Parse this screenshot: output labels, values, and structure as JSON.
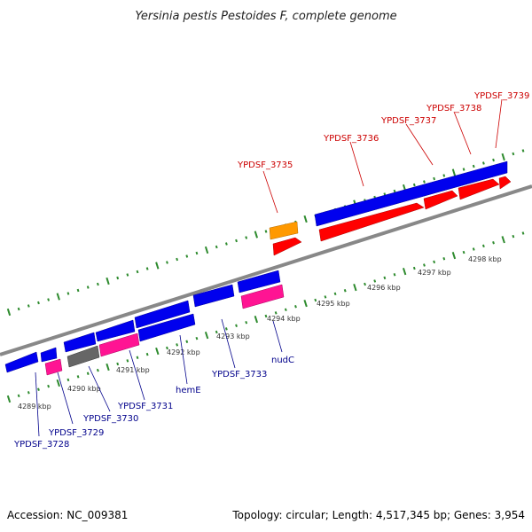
{
  "title": "Yersinia pestis Pestoides F, complete genome",
  "footer": {
    "accession": "Accession: NC_009381",
    "summary": "Topology: circular; Length: 4,517,345 bp; Genes: 3,954"
  },
  "colors": {
    "background": "#ffffff",
    "backbone": "#888888",
    "tick": "#2e8b2e",
    "forward_label": "#cc0000",
    "reverse_label": "#00008b",
    "cds_forward": "#ff0000",
    "cds_reverse": "#0000ee",
    "cds_pink": "#ff1493",
    "cds_orange": "#ff9900",
    "cds_gray": "#666666"
  },
  "scale": {
    "tick_labels": [
      "4289 kbp",
      "4290 kbp",
      "4291 kbp",
      "4292 kbp",
      "4293 kbp",
      "4294 kbp",
      "4295 kbp",
      "4296 kbp",
      "4297 kbp",
      "4298 kbp"
    ]
  },
  "genes": {
    "forward_labels": [
      "YPDSF_3735",
      "YPDSF_3736",
      "YPDSF_3737",
      "YPDSF_3738",
      "YPDSF_3739"
    ],
    "reverse_labels": [
      "YPDSF_3728",
      "YPDSF_3729",
      "YPDSF_3730",
      "YPDSF_3731",
      "hemE",
      "YPDSF_3733",
      "nudC"
    ]
  }
}
